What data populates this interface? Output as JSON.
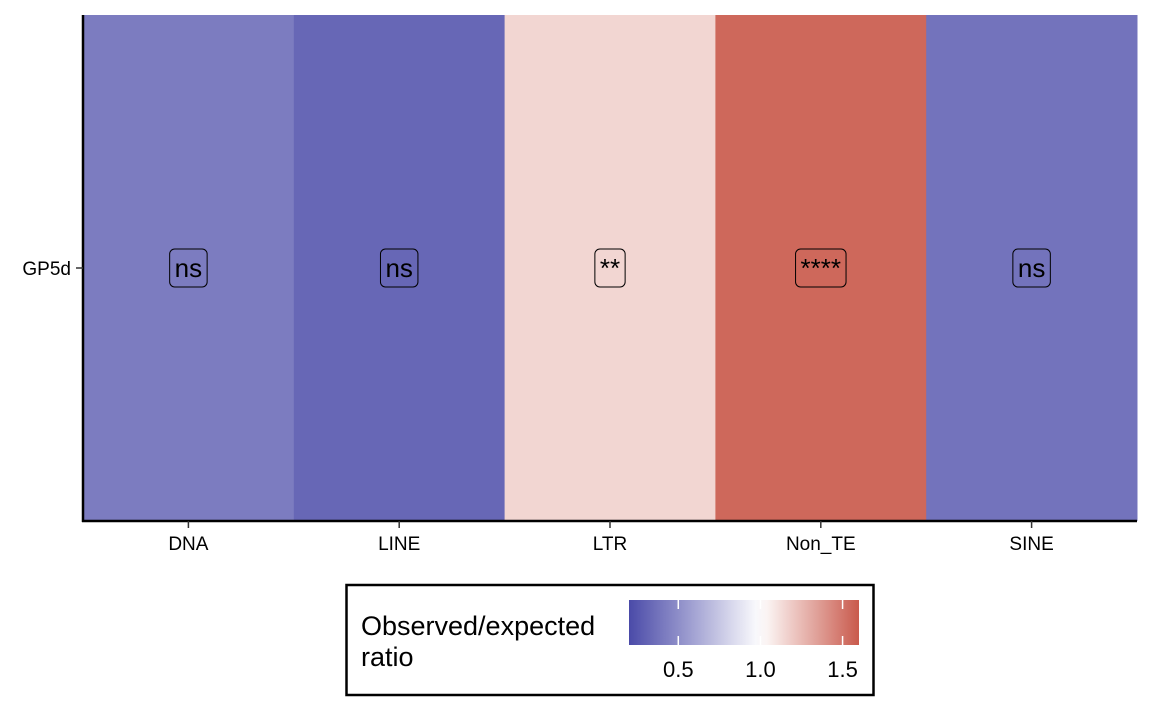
{
  "chart_data": {
    "type": "heatmap",
    "x_categories": [
      "DNA",
      "LINE",
      "LTR",
      "Non_TE",
      "SINE"
    ],
    "y_categories": [
      "GP5d"
    ],
    "cells": [
      {
        "x": "DNA",
        "y": "GP5d",
        "value": 0.42,
        "label": "ns"
      },
      {
        "x": "LINE",
        "y": "GP5d",
        "value": 0.33,
        "label": "ns"
      },
      {
        "x": "LTR",
        "y": "GP5d",
        "value": 1.15,
        "label": "**"
      },
      {
        "x": "Non_TE",
        "y": "GP5d",
        "value": 1.55,
        "label": "****"
      },
      {
        "x": "SINE",
        "y": "GP5d",
        "value": 0.38,
        "label": "ns"
      }
    ],
    "legend": {
      "title_lines": [
        "Observed/expected",
        "ratio"
      ],
      "placement": "bottom",
      "range": [
        0.2,
        1.6
      ],
      "midpoint": 1.0,
      "ticks": [
        0.5,
        1.0,
        1.5
      ],
      "tick_labels": [
        "0.5",
        "1.0",
        "1.5"
      ],
      "colors": {
        "low": "#4a4aa8",
        "mid": "#ffffff",
        "high": "#c95a4c"
      }
    },
    "grid": false
  }
}
